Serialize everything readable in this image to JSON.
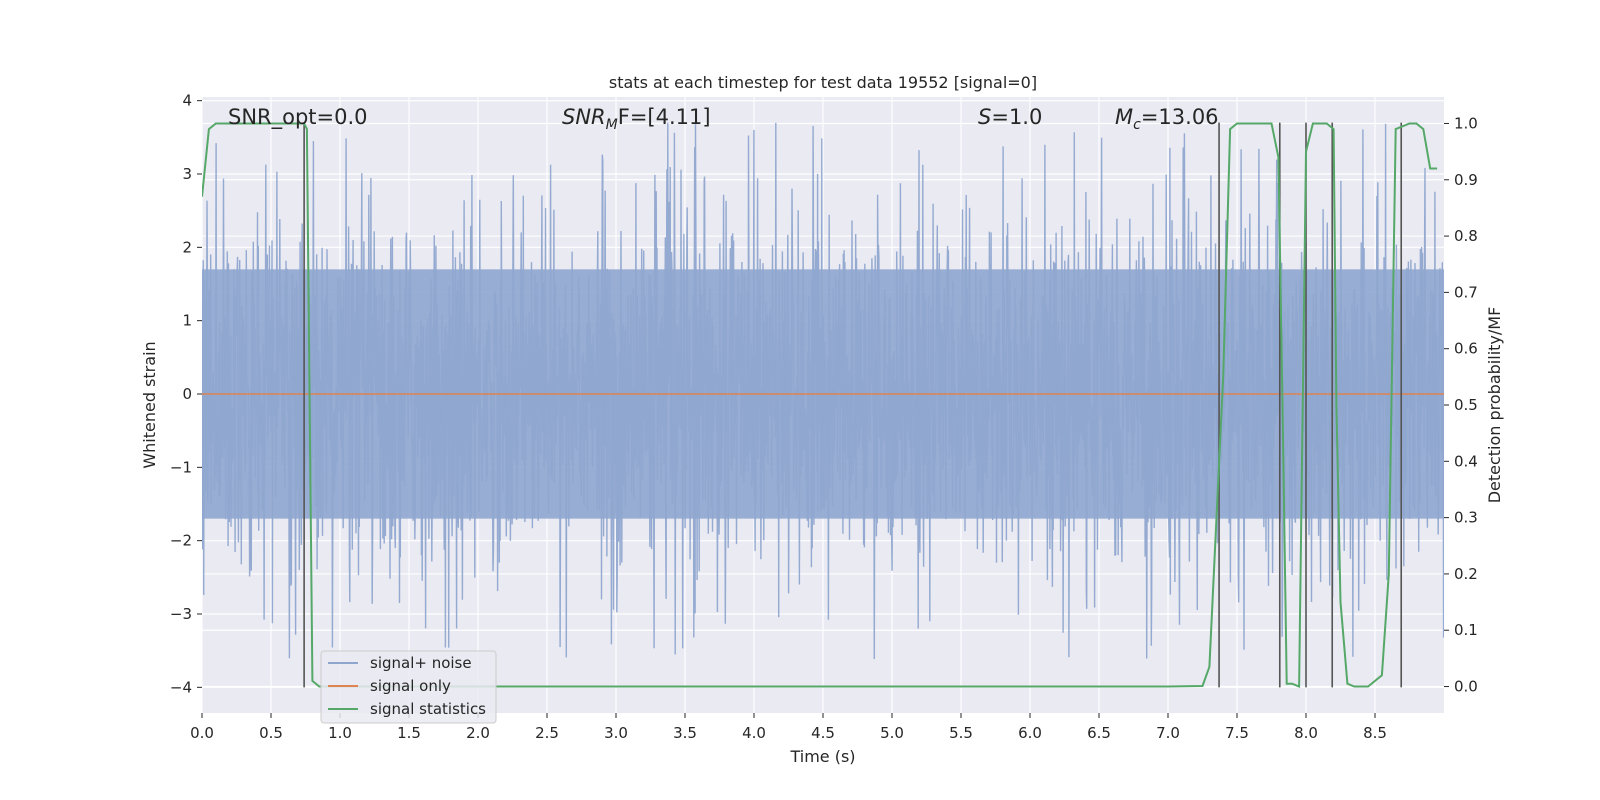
{
  "chart_data": {
    "type": "line",
    "title": "stats at each timestep for test data 19552 [signal=0]",
    "xlabel": "Time (s)",
    "ylabel": "Whitened strain",
    "y2label": "Detection probability/MF",
    "xlim": [
      0.0,
      9.0
    ],
    "ylim": [
      -4.35,
      4.05
    ],
    "y2lim": [
      -0.047,
      1.047
    ],
    "x_ticks": [
      0.0,
      0.5,
      1.0,
      1.5,
      2.0,
      2.5,
      3.0,
      3.5,
      4.0,
      4.5,
      5.0,
      5.5,
      6.0,
      6.5,
      7.0,
      7.5,
      8.0,
      8.5
    ],
    "x_tick_labels": [
      "0.0",
      "0.5",
      "1.0",
      "1.5",
      "2.0",
      "2.5",
      "3.0",
      "3.5",
      "4.0",
      "4.5",
      "5.0",
      "5.5",
      "6.0",
      "6.5",
      "7.0",
      "7.5",
      "8.0",
      "8.5"
    ],
    "y_ticks": [
      4,
      3,
      2,
      1,
      0,
      -1,
      -2,
      -3,
      -4
    ],
    "y_tick_labels": [
      "4",
      "3",
      "2",
      "1",
      "0",
      "−1",
      "−2",
      "−3",
      "−4"
    ],
    "y2_ticks": [
      1.0,
      0.9,
      0.8,
      0.7,
      0.6,
      0.5,
      0.4,
      0.3,
      0.2,
      0.1,
      0.0
    ],
    "y2_tick_labels": [
      "1.0",
      "0.9",
      "0.8",
      "0.7",
      "0.6",
      "0.5",
      "0.4",
      "0.3",
      "0.2",
      "0.1",
      "0.0"
    ],
    "grid": true,
    "legend": {
      "placement": "lower-left",
      "entries": [
        {
          "label": "signal+ noise",
          "color": "#8fa6cf"
        },
        {
          "label": "signal only",
          "color": "#dd8452"
        },
        {
          "label": "signal statistics",
          "color": "#55a868"
        }
      ]
    },
    "annotations": {
      "snr_opt": "SNR_opt=0.0",
      "snr_mf_prefix": "SNR",
      "snr_mf_sub": "M",
      "snr_mf_rest": "F=[4.11]",
      "s_var": "S",
      "s_rest": "=1.0",
      "mc_var": "M",
      "mc_sub": "c",
      "mc_rest": "=13.06"
    },
    "series": [
      {
        "name": "signal+ noise",
        "color": "#8fa6cf",
        "kind": "noise",
        "duration": 9.0,
        "core_abs": 1.7,
        "max_abs": 3.7,
        "mean": 0.0
      },
      {
        "name": "signal only",
        "color": "#dd8452",
        "axis": "left",
        "x": [
          0.0,
          9.0
        ],
        "y": [
          0.0,
          0.0
        ]
      },
      {
        "name": "signal statistics",
        "color": "#55a868",
        "axis": "right",
        "x": [
          0.0,
          0.05,
          0.1,
          0.2,
          0.5,
          0.7,
          0.74,
          0.76,
          0.8,
          0.85,
          1.0,
          3.0,
          5.0,
          7.0,
          7.25,
          7.3,
          7.4,
          7.45,
          7.5,
          7.6,
          7.7,
          7.75,
          7.8,
          7.83,
          7.86,
          7.9,
          7.95,
          8.0,
          8.05,
          8.1,
          8.15,
          8.2,
          8.22,
          8.25,
          8.3,
          8.35,
          8.4,
          8.45,
          8.55,
          8.6,
          8.65,
          8.75,
          8.8,
          8.85,
          8.9,
          8.95
        ],
        "y": [
          0.87,
          0.99,
          1.0,
          1.0,
          1.0,
          1.0,
          1.0,
          0.99,
          0.01,
          0.0,
          0.0,
          0.0,
          0.0,
          0.0,
          0.001,
          0.035,
          0.55,
          0.99,
          1.0,
          1.0,
          1.0,
          1.0,
          0.94,
          0.5,
          0.005,
          0.005,
          0.0,
          0.95,
          1.0,
          1.0,
          1.0,
          0.99,
          0.5,
          0.15,
          0.005,
          0.0,
          0.0,
          0.0,
          0.02,
          0.2,
          0.99,
          1.0,
          1.0,
          0.99,
          0.92,
          0.92
        ]
      }
    ],
    "vertical_lines": {
      "color": "#555555",
      "x": [
        0.74,
        7.37,
        7.81,
        8.0,
        8.19,
        8.69
      ],
      "y_top": 3.7,
      "y_bottom": -4.0
    },
    "colors": {
      "background": "#eaeaf2",
      "grid": "#ffffff",
      "text": "#262626"
    }
  }
}
